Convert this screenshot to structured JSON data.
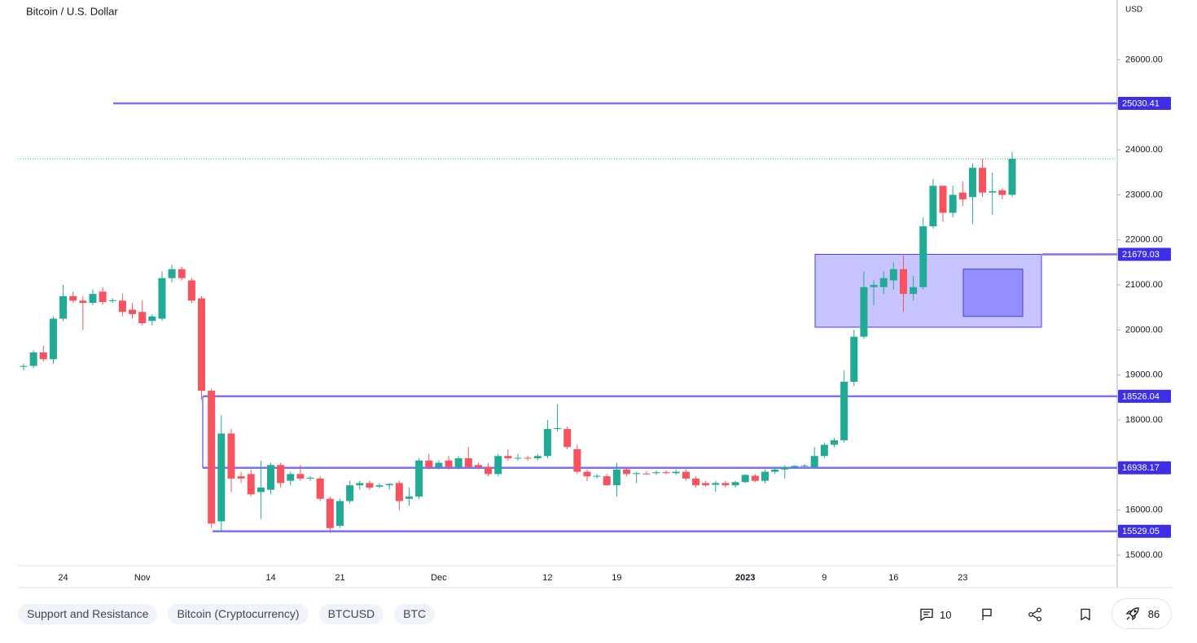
{
  "chart_data": {
    "type": "candlestick",
    "title": "Bitcoin / U.S. Dollar",
    "y_axis_label": "USD",
    "categories": [
      null,
      null,
      null,
      null,
      "24",
      null,
      null,
      null,
      null,
      null,
      null,
      null,
      "Nov",
      null,
      null,
      null,
      null,
      null,
      null,
      null,
      null,
      null,
      null,
      null,
      null,
      "14",
      null,
      null,
      null,
      null,
      null,
      null,
      "21",
      null,
      null,
      null,
      null,
      null,
      null,
      null,
      null,
      null,
      "Dec",
      null,
      null,
      null,
      null,
      null,
      null,
      null,
      null,
      null,
      null,
      "12",
      null,
      null,
      null,
      null,
      null,
      null,
      "19",
      null,
      null,
      null,
      null,
      null,
      null,
      null,
      null,
      null,
      null,
      null,
      null,
      "2023",
      null,
      null,
      null,
      null,
      null,
      null,
      null,
      "9",
      null,
      null,
      null,
      null,
      null,
      null,
      "16",
      null,
      null,
      null,
      null,
      null,
      null,
      "23",
      null,
      null,
      null,
      null,
      null
    ],
    "open": [
      19180,
      19200,
      19500,
      19350,
      20250,
      20750,
      20650,
      20600,
      20850,
      20640,
      20650,
      20450,
      20400,
      20200,
      20250,
      21150,
      21350,
      21100,
      20700,
      18650,
      15750,
      17700,
      16750,
      16800,
      16400,
      16450,
      17000,
      16650,
      16800,
      16700,
      16700,
      16250,
      15650,
      16200,
      16550,
      16600,
      16520,
      16550,
      16600,
      16250,
      16300,
      17100,
      16950,
      17100,
      16950,
      17150,
      17000,
      16950,
      16800,
      17200,
      17150,
      17160,
      17150,
      17200,
      17800,
      17800,
      17350,
      16850,
      16750,
      16750,
      16550,
      16900,
      16800,
      16810,
      16820,
      16840,
      16820,
      16850,
      16700,
      16600,
      16560,
      16600,
      16550,
      16620,
      16760,
      16650,
      16850,
      16900,
      16950,
      16980,
      16950,
      17200,
      17450,
      17550,
      18850,
      19850,
      20950,
      20950,
      21100,
      21350,
      20800,
      20950,
      22300,
      23200,
      22600,
      23050,
      22950,
      23600,
      23050,
      23100,
      23000
    ],
    "high": [
      19250,
      19550,
      19650,
      20300,
      21000,
      20850,
      20750,
      20900,
      20950,
      20700,
      20800,
      20600,
      20650,
      20350,
      21300,
      21450,
      21400,
      21150,
      20750,
      18700,
      18100,
      17800,
      16850,
      16900,
      17100,
      17050,
      17050,
      16850,
      17000,
      16750,
      16750,
      16300,
      16250,
      16650,
      16650,
      16650,
      16600,
      16600,
      16650,
      16500,
      17150,
      17250,
      17100,
      17200,
      17200,
      17400,
      17050,
      17050,
      17250,
      17350,
      17250,
      17200,
      17250,
      18000,
      18350,
      17850,
      17450,
      16900,
      16800,
      16800,
      17050,
      16950,
      16850,
      16860,
      16870,
      16880,
      16900,
      16900,
      16750,
      16650,
      16650,
      16650,
      16650,
      16800,
      16800,
      16900,
      16950,
      17000,
      17000,
      17020,
      17400,
      17500,
      17600,
      19100,
      20000,
      21300,
      21100,
      21300,
      21500,
      21650,
      21200,
      22500,
      23350,
      23200,
      23200,
      23300,
      23700,
      23800,
      23500,
      23150,
      23950
    ],
    "low": [
      19100,
      19150,
      19300,
      19250,
      20200,
      20600,
      20000,
      20550,
      20550,
      20600,
      20300,
      20250,
      20100,
      20100,
      20200,
      21050,
      21100,
      20600,
      18450,
      15600,
      15550,
      16400,
      16600,
      16300,
      15800,
      16350,
      16500,
      16550,
      16650,
      16650,
      16200,
      15500,
      15600,
      16150,
      16450,
      16450,
      16480,
      16450,
      16000,
      16100,
      16250,
      16900,
      16900,
      16900,
      16900,
      16950,
      16900,
      16750,
      16750,
      17100,
      17100,
      17100,
      17100,
      17150,
      17750,
      17350,
      16800,
      16650,
      16700,
      16550,
      16300,
      16750,
      16600,
      16780,
      16780,
      16800,
      16780,
      16650,
      16500,
      16520,
      16400,
      16500,
      16500,
      16600,
      16620,
      16600,
      16800,
      16700,
      16920,
      16950,
      16920,
      17150,
      17400,
      17500,
      18750,
      19800,
      20550,
      20800,
      20900,
      20400,
      20650,
      20900,
      22250,
      22400,
      22500,
      22750,
      22350,
      22950,
      22550,
      22900,
      22950
    ],
    "close": [
      19200,
      19500,
      19350,
      20250,
      20750,
      20650,
      20600,
      20800,
      20620,
      20660,
      20400,
      20350,
      20150,
      20300,
      21150,
      21350,
      21150,
      20650,
      18650,
      15700,
      17700,
      16700,
      16700,
      16350,
      16500,
      17000,
      16600,
      16800,
      16700,
      16720,
      16250,
      15600,
      16200,
      16550,
      16600,
      16500,
      16550,
      16580,
      16200,
      16300,
      17100,
      16950,
      17050,
      16950,
      17150,
      16950,
      16950,
      16800,
      17200,
      17150,
      17160,
      17150,
      17200,
      17800,
      17820,
      17400,
      16850,
      16750,
      16760,
      16550,
      16900,
      16800,
      16820,
      16800,
      16840,
      16820,
      16850,
      16700,
      16550,
      16550,
      16600,
      16550,
      16620,
      16780,
      16650,
      16850,
      16900,
      16950,
      16980,
      16990,
      17200,
      17450,
      17550,
      18850,
      19850,
      20950,
      21000,
      21150,
      21350,
      20800,
      20950,
      22300,
      23200,
      22600,
      23000,
      22900,
      23600,
      23050,
      23080,
      23000,
      23800
    ],
    "up_color": "#22ab94",
    "down_color": "#f7525f",
    "ylim": [
      14765,
      27326
    ],
    "yticks": [
      {
        "value": 26000,
        "label": "26000.00"
      },
      {
        "value": 24000,
        "label": "24000.00"
      },
      {
        "value": 23000,
        "label": "23000.00"
      },
      {
        "value": 22000,
        "label": "22000.00"
      },
      {
        "value": 21000,
        "label": "21000.00"
      },
      {
        "value": 20000,
        "label": "20000.00"
      },
      {
        "value": 19000,
        "label": "19000.00"
      },
      {
        "value": 18000,
        "label": "18000.00"
      },
      {
        "value": 16000,
        "label": "16000.00"
      },
      {
        "value": 15000,
        "label": "15000.00"
      }
    ],
    "levels": [
      25030.41,
      21679.03,
      18526.04,
      16938.17,
      15529.05
    ],
    "level_color": "#7c70f5",
    "zones": [
      {
        "top": 21679.03,
        "bottom": 20060
      },
      {
        "top": 21350,
        "bottom": 20300
      }
    ],
    "zone_color": "#6c63ff"
  },
  "tags": [
    "Support and Resistance",
    "Bitcoin (Cryptocurrency)",
    "BTCUSD",
    "BTC"
  ],
  "actions": {
    "comments": 10,
    "boosts": 86
  }
}
